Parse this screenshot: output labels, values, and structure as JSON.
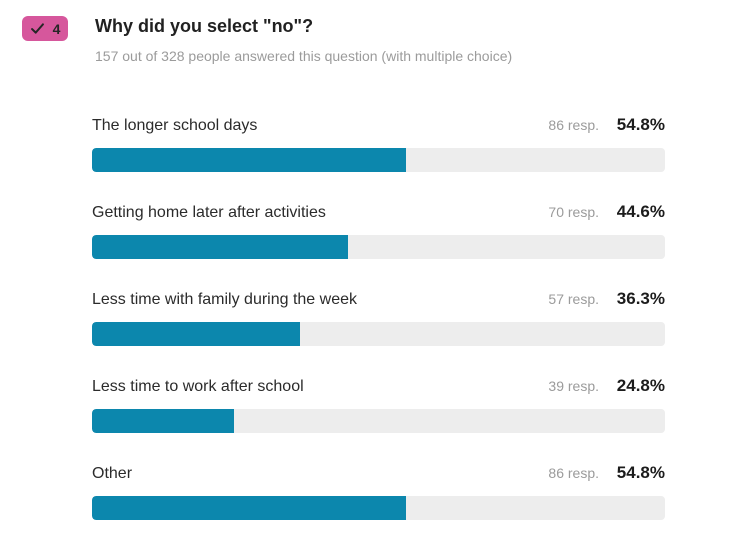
{
  "header": {
    "badge": {
      "number": "4",
      "icon": "check-icon"
    },
    "title": "Why did you select \"no\"?",
    "subtitle": "157 out of 328 people answered this question (with multiple choice)"
  },
  "colors": {
    "badge_bg": "#d6579c",
    "badge_text": "#262626",
    "bar_fill": "#0c87ad",
    "bar_track": "#ededed",
    "muted_text": "#9b9b9b",
    "title_text": "#212121",
    "percent_text": "#1c1c1c"
  },
  "chart_data": {
    "type": "bar",
    "orientation": "horizontal",
    "title": "Why did you select \"no\"?",
    "subtitle": "157 out of 328 people answered this question (with multiple choice)",
    "categories": [
      "The longer school days",
      "Getting home later after activities",
      "Less time with family during the week",
      "Less time to work after school",
      "Other"
    ],
    "series": [
      {
        "name": "responses",
        "values": [
          86,
          70,
          57,
          39,
          86
        ]
      },
      {
        "name": "percent",
        "values": [
          54.8,
          44.6,
          36.3,
          24.8,
          54.8
        ]
      }
    ],
    "xlim": [
      0,
      100
    ],
    "grid": false,
    "legend": false,
    "rows": [
      {
        "label": "The longer school days",
        "responses_label": "86 resp.",
        "percent_label": "54.8%",
        "percent_value": 54.8
      },
      {
        "label": "Getting home later after activities",
        "responses_label": "70 resp.",
        "percent_label": "44.6%",
        "percent_value": 44.6
      },
      {
        "label": "Less time with family during the week",
        "responses_label": "57 resp.",
        "percent_label": "36.3%",
        "percent_value": 36.3
      },
      {
        "label": "Less time to work after school",
        "responses_label": "39 resp.",
        "percent_label": "24.8%",
        "percent_value": 24.8
      },
      {
        "label": "Other",
        "responses_label": "86 resp.",
        "percent_label": "54.8%",
        "percent_value": 54.8
      }
    ]
  }
}
